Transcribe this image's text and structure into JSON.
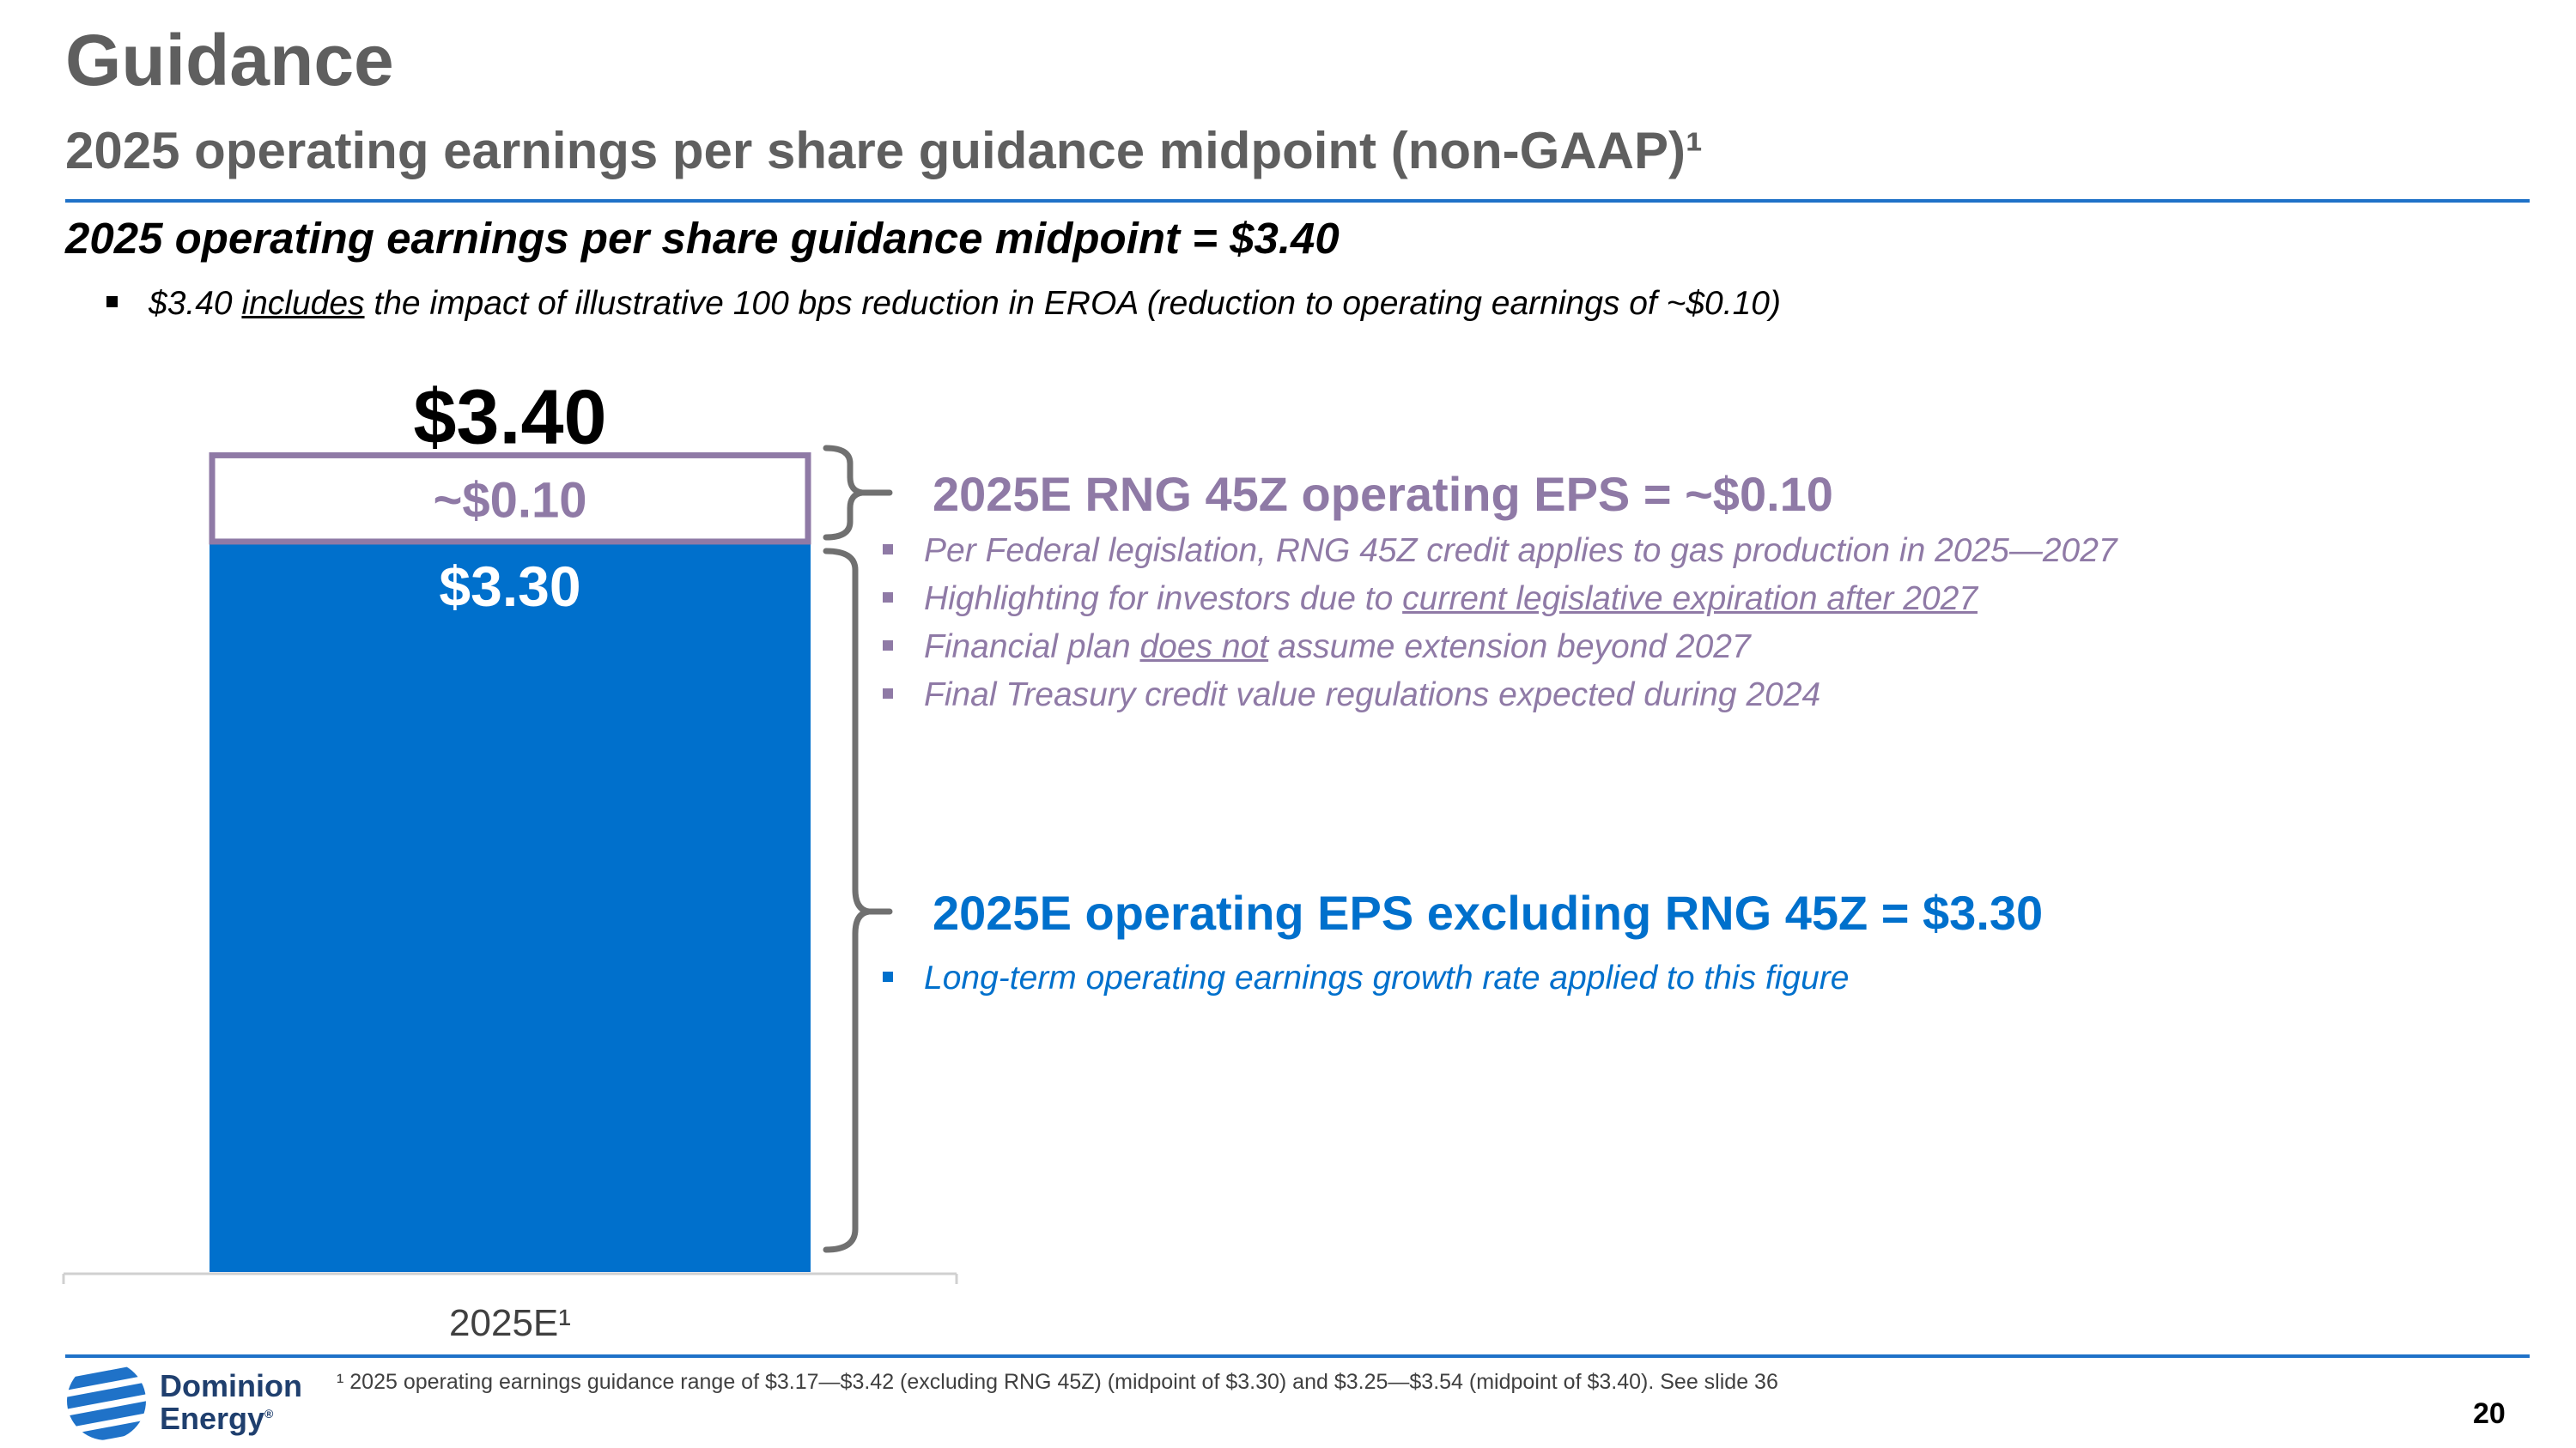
{
  "header": {
    "title": "Guidance",
    "subtitle": "2025 operating earnings per share guidance midpoint (non-GAAP)¹"
  },
  "headline": "2025 operating earnings per share guidance midpoint = $3.40",
  "top_bullet": {
    "pre": "$3.40 ",
    "underlined": "includes",
    "post": " the impact of illustrative 100 bps reduction in EROA (reduction to operating earnings of ~$0.10)"
  },
  "rng_section": {
    "heading": "2025E RNG 45Z operating EPS = ~$0.10",
    "bullets": [
      {
        "pre": "Per Federal legislation, RNG 45Z credit applies to gas production in 2025—2027",
        "underlined": "",
        "post": ""
      },
      {
        "pre": "Highlighting for investors due to ",
        "underlined": "current legislative expiration after 2027",
        "post": ""
      },
      {
        "pre": "Financial plan ",
        "underlined": "does not",
        "post": " assume extension beyond 2027"
      },
      {
        "pre": "Final Treasury credit value regulations expected during 2024",
        "underlined": "",
        "post": ""
      }
    ]
  },
  "core_section": {
    "heading": "2025E operating EPS excluding RNG 45Z = $3.30",
    "bullet": "Long-term operating earnings growth rate applied to this figure"
  },
  "chart_data": {
    "type": "bar",
    "stacked": true,
    "categories": [
      "2025E¹"
    ],
    "series": [
      {
        "values": [
          3.3
        ],
        "label": "$3.30",
        "color": "#0070cc"
      },
      {
        "values": [
          0.1
        ],
        "label": "~$0.10",
        "color": "#ffffff",
        "border": "#8f7aa6"
      }
    ],
    "total_label": "$3.40"
  },
  "footnote": "¹ 2025 operating earnings guidance range of $3.17—$3.42 (excluding RNG 45Z) (midpoint of $3.30) and $3.25—$3.54 (midpoint of $3.40). See slide 36",
  "page_number": "20",
  "logo": {
    "line1": "Dominion",
    "line2": "Energy",
    "mark": "®"
  },
  "colors": {
    "accent_blue": "#0070cc",
    "purple": "#8f7aa6",
    "rule_blue": "#1f72c8",
    "title_gray": "#5f5f5f"
  }
}
